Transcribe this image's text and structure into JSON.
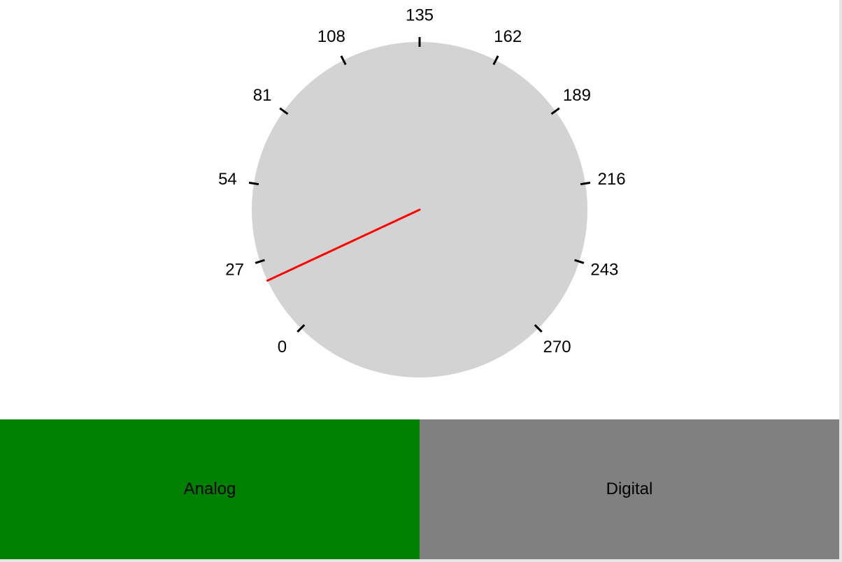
{
  "gauge": {
    "min": 0,
    "max": 270,
    "value": 20,
    "ticks": [
      "0",
      "27",
      "54",
      "81",
      "108",
      "135",
      "162",
      "189",
      "216",
      "243",
      "270"
    ],
    "dial_color": "#d3d3d3",
    "needle_color": "#ff0000",
    "tick_color": "#000000"
  },
  "modes": {
    "analog": {
      "label": "Analog",
      "color": "#008000",
      "selected": true
    },
    "digital": {
      "label": "Digital",
      "color": "#808080",
      "selected": false
    }
  }
}
